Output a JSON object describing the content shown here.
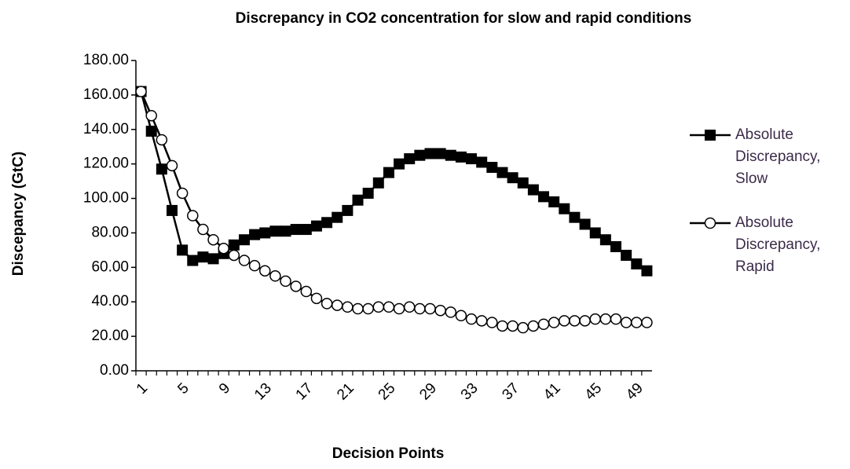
{
  "chart_data": {
    "type": "line",
    "title": "Discrepancy in CO2 concentration for  slow and rapid conditions",
    "x_label": "Decision Points",
    "y_label": "Discepancy (GtC)",
    "categories": [
      1,
      null,
      null,
      null,
      5,
      null,
      null,
      null,
      9,
      null,
      null,
      null,
      13,
      null,
      null,
      null,
      17,
      null,
      null,
      null,
      21,
      null,
      null,
      null,
      25,
      null,
      null,
      null,
      29,
      null,
      null,
      null,
      33,
      null,
      null,
      null,
      37,
      null,
      null,
      null,
      41,
      null,
      null,
      null,
      45,
      null,
      null,
      null,
      49,
      null
    ],
    "series": [
      {
        "name": "Absolute Discrepancy, Slow",
        "color": "#000000",
        "marker": "square",
        "values": [
          162,
          139,
          117,
          93,
          70,
          64,
          66,
          65,
          68,
          73,
          76,
          79,
          80,
          81,
          81,
          82,
          82,
          84,
          86,
          89,
          93,
          99,
          103,
          109,
          115,
          120,
          123,
          125,
          126,
          126,
          125,
          124,
          123,
          121,
          118,
          115,
          112,
          109,
          105,
          101,
          98,
          94,
          89,
          85,
          80,
          76,
          72,
          67,
          62,
          58
        ]
      },
      {
        "name": "Absolute Discrepancy, Rapid",
        "color": "#000000",
        "marker": "circle",
        "values": [
          162,
          148,
          134,
          119,
          103,
          90,
          82,
          76,
          71,
          67,
          64,
          61,
          58,
          55,
          52,
          49,
          46,
          42,
          39,
          38,
          37,
          36,
          36,
          37,
          37,
          36,
          37,
          36,
          36,
          35,
          34,
          32,
          30,
          29,
          28,
          26,
          26,
          25,
          26,
          27,
          28,
          29,
          29,
          29,
          30,
          30,
          30,
          28,
          28,
          28
        ]
      }
    ],
    "ylim": [
      0,
      180
    ],
    "yticks": [
      {
        "value": 0,
        "label": "0.00"
      },
      {
        "value": 20,
        "label": "20.00"
      },
      {
        "value": 40,
        "label": "40.00"
      },
      {
        "value": 60,
        "label": "60.00"
      },
      {
        "value": 80,
        "label": "80.00"
      },
      {
        "value": 100,
        "label": "100.00"
      },
      {
        "value": 120,
        "label": "120.00"
      },
      {
        "value": 140,
        "label": "140.00"
      },
      {
        "value": 160,
        "label": "160.00"
      },
      {
        "value": 180,
        "label": "180.00"
      }
    ],
    "grid": false,
    "legend": "right"
  }
}
